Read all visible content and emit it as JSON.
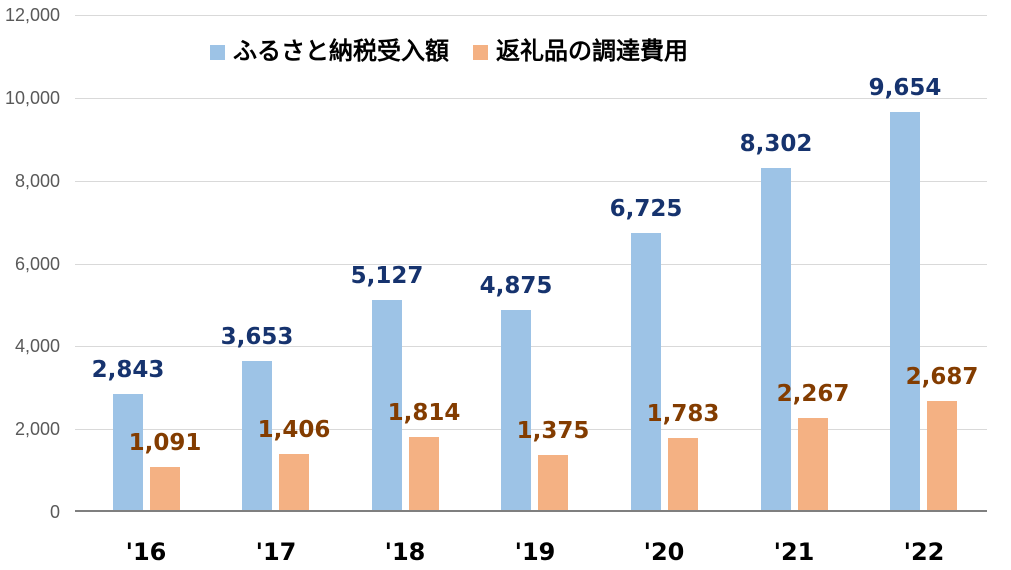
{
  "chart_data": {
    "type": "bar",
    "title": "",
    "categories": [
      "'16",
      "'17",
      "'18",
      "'19",
      "'20",
      "'21",
      "'22"
    ],
    "series": [
      {
        "key": "receipts",
        "name": "ふるさと納税受入額",
        "bar_color": "#9DC3E6",
        "label_color": "#16336E",
        "values": [
          2843,
          3653,
          5127,
          4875,
          6725,
          8302,
          9654
        ],
        "value_labels": [
          "2,843",
          "3,653",
          "5,127",
          "4,875",
          "6,725",
          "8,302",
          "9,654"
        ]
      },
      {
        "key": "procurement-cost",
        "name": "返礼品の調達費用",
        "bar_color": "#F4B183",
        "label_color": "#833C00",
        "values": [
          1091,
          1406,
          1814,
          1375,
          1783,
          2267,
          2687
        ],
        "value_labels": [
          "1,091",
          "1,406",
          "1,814",
          "1,375",
          "1,783",
          "2,267",
          "2,687"
        ]
      }
    ],
    "y_axis": {
      "min": 0,
      "max": 12000,
      "step": 2000,
      "tick_labels": [
        "0",
        "2,000",
        "4,000",
        "6,000",
        "8,000",
        "10,000",
        "12,000"
      ],
      "tick_color": "#595959"
    },
    "x_axis": {
      "label_color": "#000000"
    },
    "grid": {
      "show": true,
      "line_color": "#D9D9D9",
      "zero_line_color": "#7F7F7F"
    },
    "legend": {
      "position": "top"
    }
  }
}
